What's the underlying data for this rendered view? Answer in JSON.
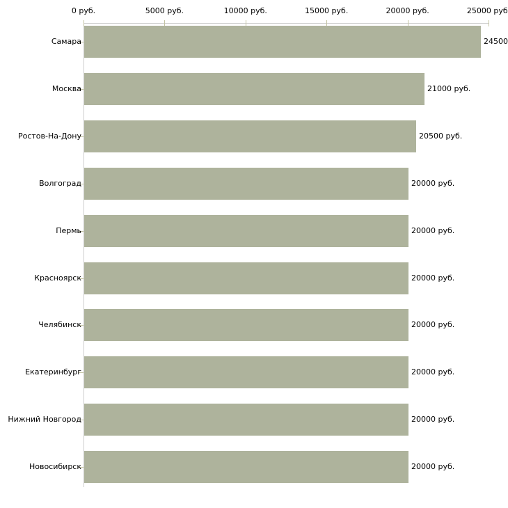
{
  "chart_data": {
    "type": "bar",
    "orientation": "horizontal",
    "title": "",
    "xlabel": "",
    "ylabel": "",
    "grid": false,
    "legend": false,
    "categories": [
      "Самара",
      "Москва",
      "Ростов-На-Дону",
      "Волгоград",
      "Пермь",
      "Красноярск",
      "Челябинск",
      "Екатеринбург",
      "Нижний Новгород",
      "Новосибирск"
    ],
    "values": [
      24500,
      21000,
      20500,
      20000,
      20000,
      20000,
      20000,
      20000,
      20000,
      20000
    ],
    "value_labels": [
      "24500",
      "21000 руб.",
      "20500 руб.",
      "20000 руб.",
      "20000 руб.",
      "20000 руб.",
      "20000 руб.",
      "20000 руб.",
      "20000 руб.",
      "20000 руб."
    ],
    "x_ticks": [
      0,
      5000,
      10000,
      15000,
      20000,
      25000
    ],
    "x_tick_labels": [
      "0 руб.",
      "5000 руб.",
      "10000 руб.",
      "15000 руб.",
      "20000 руб.",
      "25000 руб."
    ],
    "xlim": [
      0,
      25000
    ],
    "colors": {
      "bar": "#aeb39c",
      "axis_line": "#cccccc",
      "tick": "#c3c3a2",
      "text": "#000000",
      "background": "#ffffff"
    }
  }
}
